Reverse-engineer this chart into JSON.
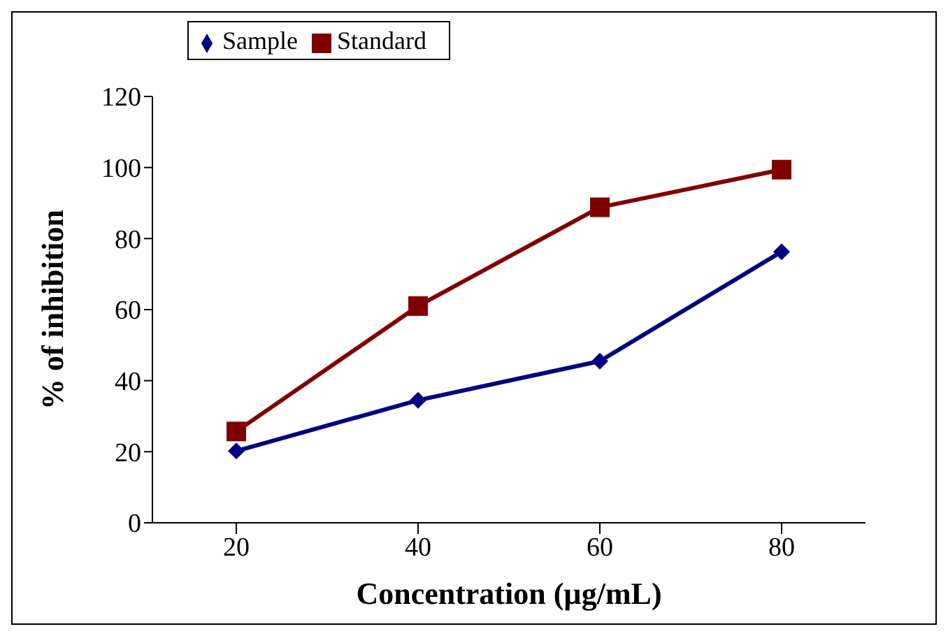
{
  "chart_data": {
    "type": "line",
    "xlabel": "Concentration (µg/mL)",
    "ylabel": "% of inhibition",
    "categories": [
      "20",
      "40",
      "60",
      "80"
    ],
    "series": [
      {
        "name": "Sample",
        "color": "#000080",
        "marker": "diamond",
        "values": [
          20.2,
          34.5,
          45.5,
          76.3
        ]
      },
      {
        "name": "Standard",
        "color": "#800000",
        "marker": "square",
        "values": [
          25.7,
          61,
          88.8,
          99.4
        ]
      }
    ],
    "ylim": [
      0,
      120
    ],
    "yticks": [
      0,
      20,
      40,
      60,
      80,
      100,
      120
    ],
    "grid": false,
    "legend": "top left"
  }
}
